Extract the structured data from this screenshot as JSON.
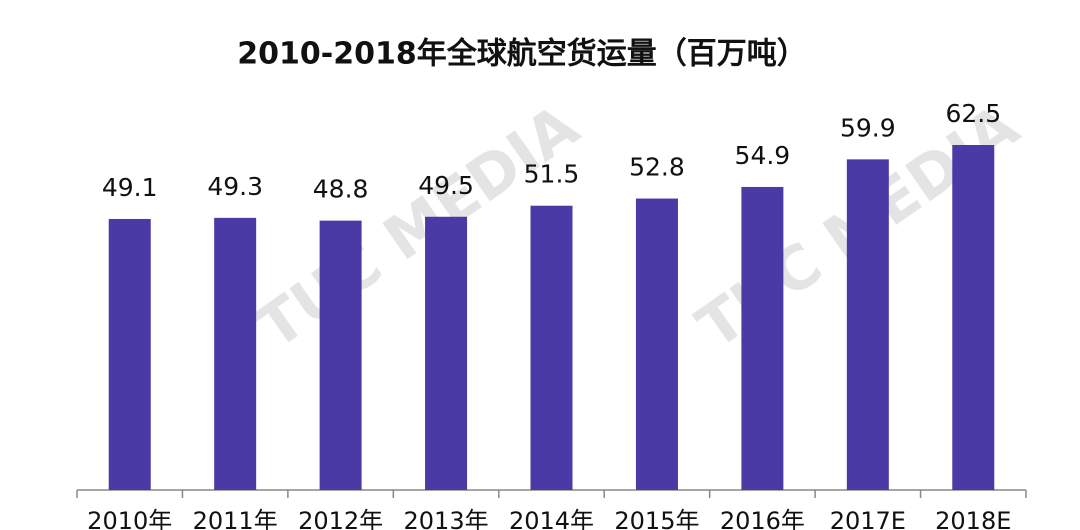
{
  "chart_data": {
    "type": "bar",
    "title": "2010-2018年全球航空货运量（百万吨）",
    "categories": [
      "2010年",
      "2011年",
      "2012年",
      "2013年",
      "2014年",
      "2015年",
      "2016年",
      "2017E",
      "2018E"
    ],
    "values": [
      49.1,
      49.3,
      48.8,
      49.5,
      51.5,
      52.8,
      54.9,
      59.9,
      62.5
    ],
    "color": "#4a3aa6",
    "watermark": "TUC MEDIA"
  }
}
